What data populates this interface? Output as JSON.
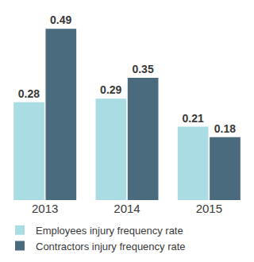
{
  "chart_data": {
    "type": "bar",
    "categories": [
      "2013",
      "2014",
      "2015"
    ],
    "series": [
      {
        "name": "Employees injury frequency rate",
        "color": "#a9dde3",
        "values": [
          0.28,
          0.29,
          0.21
        ]
      },
      {
        "name": "Contractors injury frequency rate",
        "color": "#4a6b7e",
        "values": [
          0.49,
          0.35,
          0.18
        ]
      }
    ],
    "data_labels": true,
    "legend": "bottom",
    "grid": false,
    "tick_labels": "x"
  }
}
